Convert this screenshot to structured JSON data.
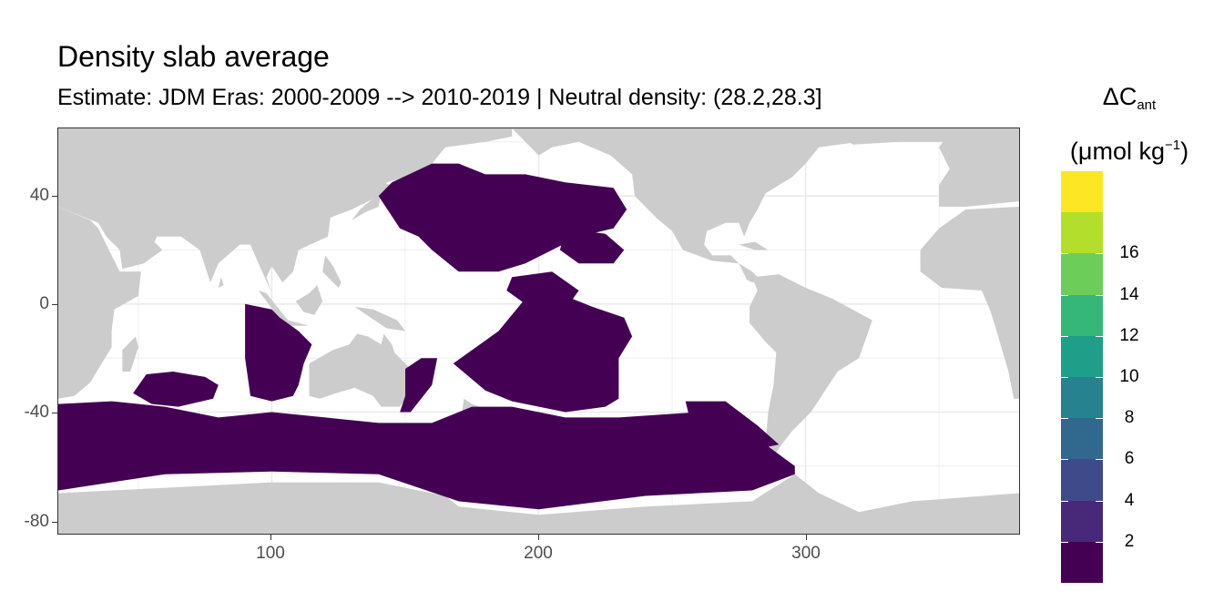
{
  "title": "Density slab average",
  "subtitle": "Estimate: JDM Eras: 2000-2009 --> 2010-2019 | Neutral density: (28.2,28.3]",
  "axes": {
    "x_ticks": [
      "100",
      "200",
      "300"
    ],
    "y_ticks": [
      "40",
      "0",
      "-40",
      "-80"
    ]
  },
  "legend": {
    "title_main": "ΔC",
    "title_sub": "ant",
    "title_unit_open": "(μmol kg",
    "title_unit_sup": "−1",
    "title_unit_close": ")",
    "labels": [
      "16",
      "14",
      "12",
      "10",
      "8",
      "6",
      "4",
      "2"
    ],
    "colors": [
      "#440154",
      "#482878",
      "#3E4A89",
      "#31688E",
      "#26828E",
      "#1F9E89",
      "#35B779",
      "#6DCD59",
      "#B4DE2C",
      "#FDE725"
    ]
  },
  "colors": {
    "land": "#cccccc",
    "ocean_value": "#440154",
    "grid": "#ebebeb"
  },
  "chart_data": {
    "type": "heatmap",
    "title": "Density slab average",
    "subtitle": "Estimate: JDM Eras: 2000-2009 --> 2010-2019 | Neutral density: (28.2,28.3]",
    "xlim": [
      20,
      380
    ],
    "ylim": [
      -85,
      65
    ],
    "x_ticks": [
      100,
      200,
      300
    ],
    "y_ticks": [
      40,
      0,
      -40,
      -80
    ],
    "grid": true,
    "legend_position": "right",
    "color_scale": {
      "breaks": [
        2,
        4,
        6,
        8,
        10,
        12,
        14,
        16
      ],
      "palette": "viridis"
    },
    "regions_value_bin": "<2"
  }
}
